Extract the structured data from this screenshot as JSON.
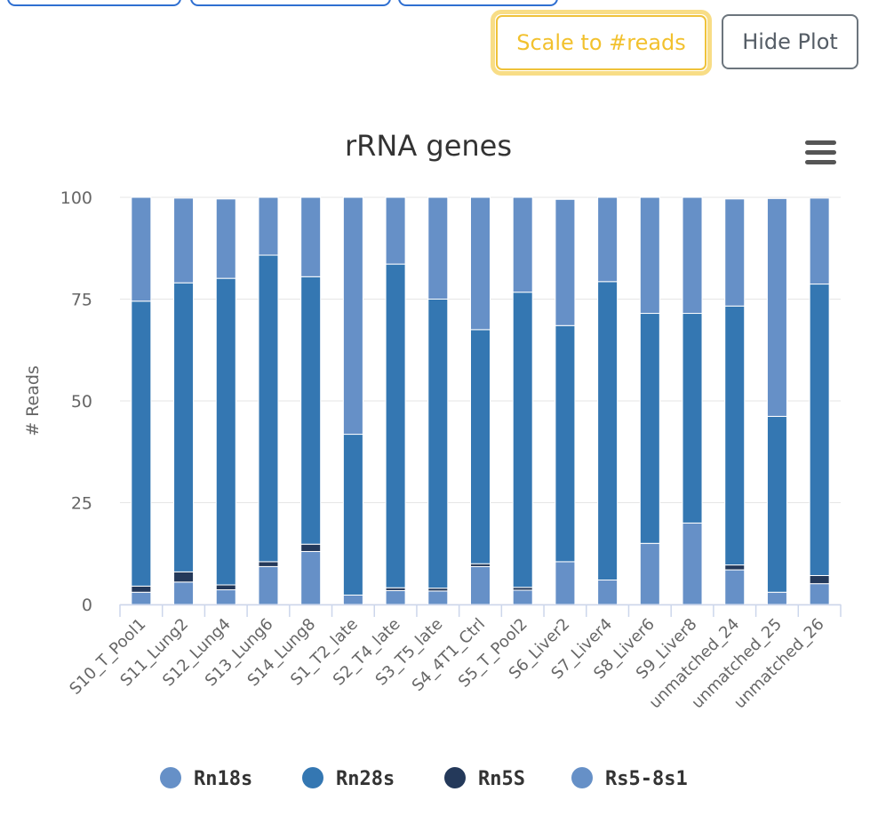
{
  "toolbar": {
    "scale_label": "Scale to #reads",
    "hide_label": "Hide Plot"
  },
  "chart_data": {
    "type": "bar",
    "stacked": true,
    "title": "rRNA genes",
    "xlabel": "",
    "ylabel": "# Reads",
    "ylim": [
      0,
      100
    ],
    "yticks": [
      0,
      25,
      50,
      75,
      100
    ],
    "grid": true,
    "legend_position": "bottom",
    "categories": [
      "S10_T_Pool1",
      "S11_Lung2",
      "S12_Lung4",
      "S13_Lung6",
      "S14_Lung8",
      "S1_T2_late",
      "S2_T4_late",
      "S3_T5_late",
      "S4_4T1_Ctrl",
      "S5_T_Pool2",
      "S6_Liver2",
      "S7_Liver4",
      "S8_Liver6",
      "S9_Liver8",
      "unmatched_24",
      "unmatched_25",
      "unmatched_26"
    ],
    "series": [
      {
        "name": "Rn18s",
        "color": "#6690c7",
        "values": [
          25.5,
          20.8,
          19.5,
          14.2,
          19.5,
          58.2,
          16.4,
          25.0,
          32.5,
          23.3,
          31.0,
          20.7,
          28.5,
          28.5,
          26.3,
          53.5,
          21.1
        ]
      },
      {
        "name": "Rn28s",
        "color": "#3477b2",
        "values": [
          70.0,
          71.0,
          75.3,
          75.3,
          65.7,
          39.5,
          79.5,
          71.0,
          57.5,
          72.5,
          58.0,
          73.3,
          56.5,
          51.5,
          63.6,
          43.2,
          71.6
        ]
      },
      {
        "name": "Rn5S",
        "color": "#24395a",
        "values": [
          1.5,
          2.5,
          1.2,
          1.2,
          1.8,
          0.0,
          0.7,
          0.7,
          0.7,
          0.7,
          0.0,
          0.0,
          0.0,
          0.0,
          1.2,
          0.0,
          2.0
        ]
      },
      {
        "name": "Rs5-8s1",
        "color": "#6690c7",
        "values": [
          3.0,
          5.5,
          3.6,
          9.3,
          13.0,
          2.3,
          3.4,
          3.3,
          9.3,
          3.5,
          10.5,
          6.0,
          15.0,
          20.0,
          8.5,
          3.0,
          5.1
        ]
      }
    ]
  }
}
